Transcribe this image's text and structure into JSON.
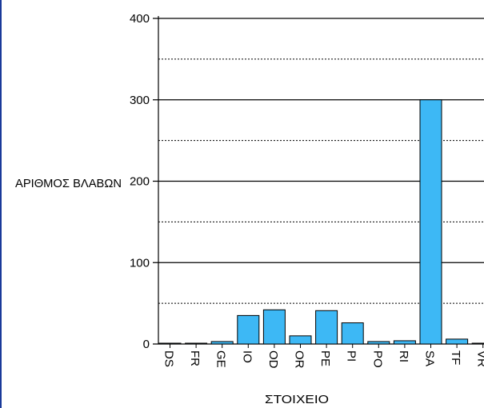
{
  "chart_data": {
    "type": "bar",
    "ylabel": "ΑΡΙΘΜΟΣ ΒΛΑΒΩΝ",
    "xlabel": "ΣΤΟΙΧΕΙΟ",
    "ylim": [
      0,
      400
    ],
    "yticks": [
      0,
      100,
      200,
      300,
      400
    ],
    "grid": "solid major lines at 100, dotted minor lines at 50",
    "categories": [
      "DS",
      "FR",
      "GE",
      "IO",
      "OD",
      "OR",
      "PE",
      "PI",
      "PO",
      "RI",
      "SA",
      "TF",
      "VR"
    ],
    "values": [
      1,
      1,
      3,
      35,
      42,
      10,
      41,
      26,
      3,
      4,
      300,
      6,
      1
    ],
    "bar_color": "#3db8f5",
    "bar_edge_color": "#000000",
    "border_color": "#1a3a9a"
  }
}
